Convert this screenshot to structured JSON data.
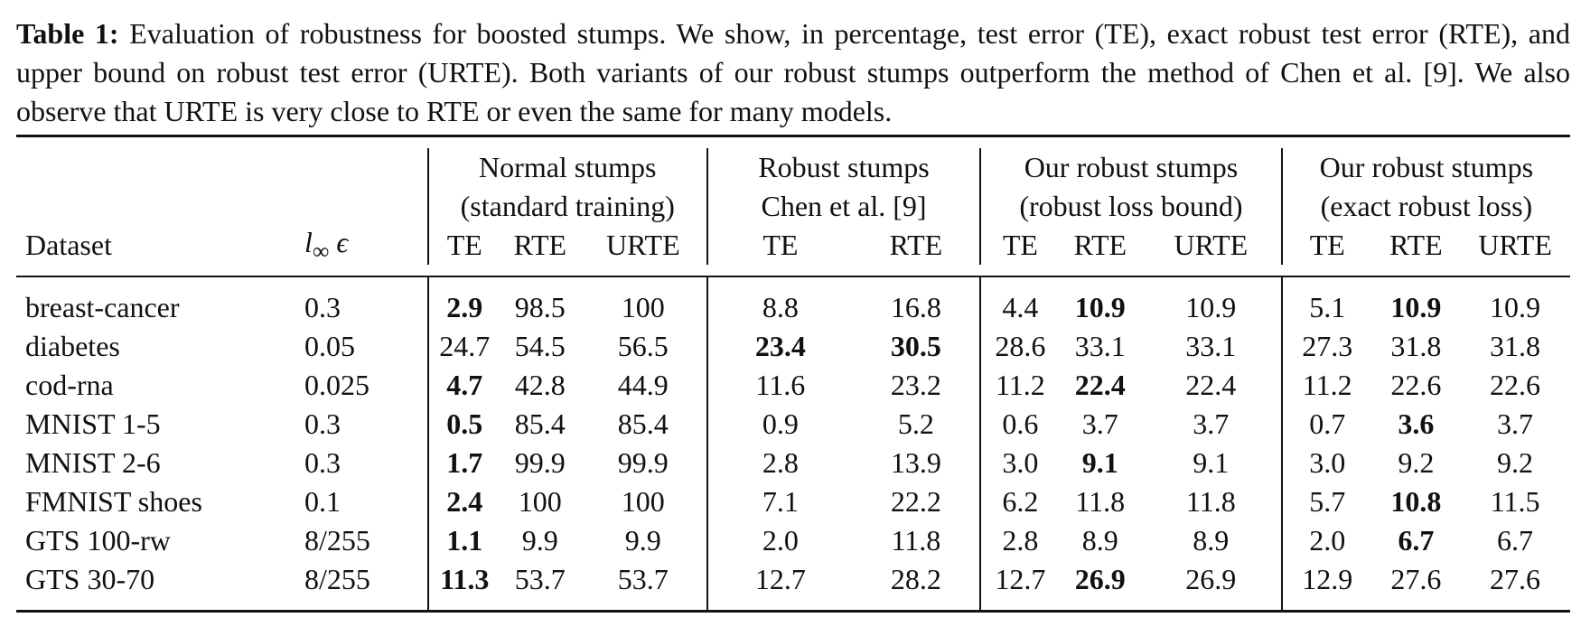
{
  "caption": {
    "label": "Table 1:",
    "text": "Evaluation of robustness for boosted stumps. We show, in percentage, test error (TE), exact robust test error (RTE), and upper bound on robust test error (URTE). Both variants of our robust stumps outperform the method of Chen et al. [9]. We also observe that URTE is very close to RTE or even the same for many models."
  },
  "table": {
    "dataset_header": "Dataset",
    "eps_header_l": "l",
    "eps_header_sub": "∞",
    "eps_header_eps": "ϵ",
    "groups": [
      {
        "line1": "Normal stumps",
        "line2": "(standard training)",
        "cols": [
          "TE",
          "RTE",
          "URTE"
        ]
      },
      {
        "line1": "Robust stumps",
        "line2": "Chen et al. [9]",
        "cols": [
          "TE",
          "RTE"
        ]
      },
      {
        "line1": "Our robust stumps",
        "line2": "(robust loss bound)",
        "cols": [
          "TE",
          "RTE",
          "URTE"
        ]
      },
      {
        "line1": "Our robust stumps",
        "line2": "(exact robust loss)",
        "cols": [
          "TE",
          "RTE",
          "URTE"
        ]
      }
    ],
    "rows": [
      {
        "dataset": "breast-cancer",
        "eps": "0.3",
        "values": [
          "2.9",
          "98.5",
          "100",
          "8.8",
          "16.8",
          "4.4",
          "10.9",
          "10.9",
          "5.1",
          "10.9",
          "10.9"
        ],
        "bold": [
          0,
          6,
          9
        ]
      },
      {
        "dataset": "diabetes",
        "eps": "0.05",
        "values": [
          "24.7",
          "54.5",
          "56.5",
          "23.4",
          "30.5",
          "28.6",
          "33.1",
          "33.1",
          "27.3",
          "31.8",
          "31.8"
        ],
        "bold": [
          3,
          4
        ]
      },
      {
        "dataset": "cod-rna",
        "eps": "0.025",
        "values": [
          "4.7",
          "42.8",
          "44.9",
          "11.6",
          "23.2",
          "11.2",
          "22.4",
          "22.4",
          "11.2",
          "22.6",
          "22.6"
        ],
        "bold": [
          0,
          6
        ]
      },
      {
        "dataset": "MNIST 1-5",
        "eps": "0.3",
        "values": [
          "0.5",
          "85.4",
          "85.4",
          "0.9",
          "5.2",
          "0.6",
          "3.7",
          "3.7",
          "0.7",
          "3.6",
          "3.7"
        ],
        "bold": [
          0,
          9
        ]
      },
      {
        "dataset": "MNIST 2-6",
        "eps": "0.3",
        "values": [
          "1.7",
          "99.9",
          "99.9",
          "2.8",
          "13.9",
          "3.0",
          "9.1",
          "9.1",
          "3.0",
          "9.2",
          "9.2"
        ],
        "bold": [
          0,
          6
        ]
      },
      {
        "dataset": "FMNIST shoes",
        "eps": "0.1",
        "values": [
          "2.4",
          "100",
          "100",
          "7.1",
          "22.2",
          "6.2",
          "11.8",
          "11.8",
          "5.7",
          "10.8",
          "11.5"
        ],
        "bold": [
          0,
          9
        ]
      },
      {
        "dataset": "GTS 100-rw",
        "eps": "8/255",
        "values": [
          "1.1",
          "9.9",
          "9.9",
          "2.0",
          "11.8",
          "2.8",
          "8.9",
          "8.9",
          "2.0",
          "6.7",
          "6.7"
        ],
        "bold": [
          0,
          9
        ]
      },
      {
        "dataset": "GTS 30-70",
        "eps": "8/255",
        "values": [
          "11.3",
          "53.7",
          "53.7",
          "12.7",
          "28.2",
          "12.7",
          "26.9",
          "26.9",
          "12.9",
          "27.6",
          "27.6"
        ],
        "bold": [
          0,
          6
        ]
      }
    ]
  }
}
